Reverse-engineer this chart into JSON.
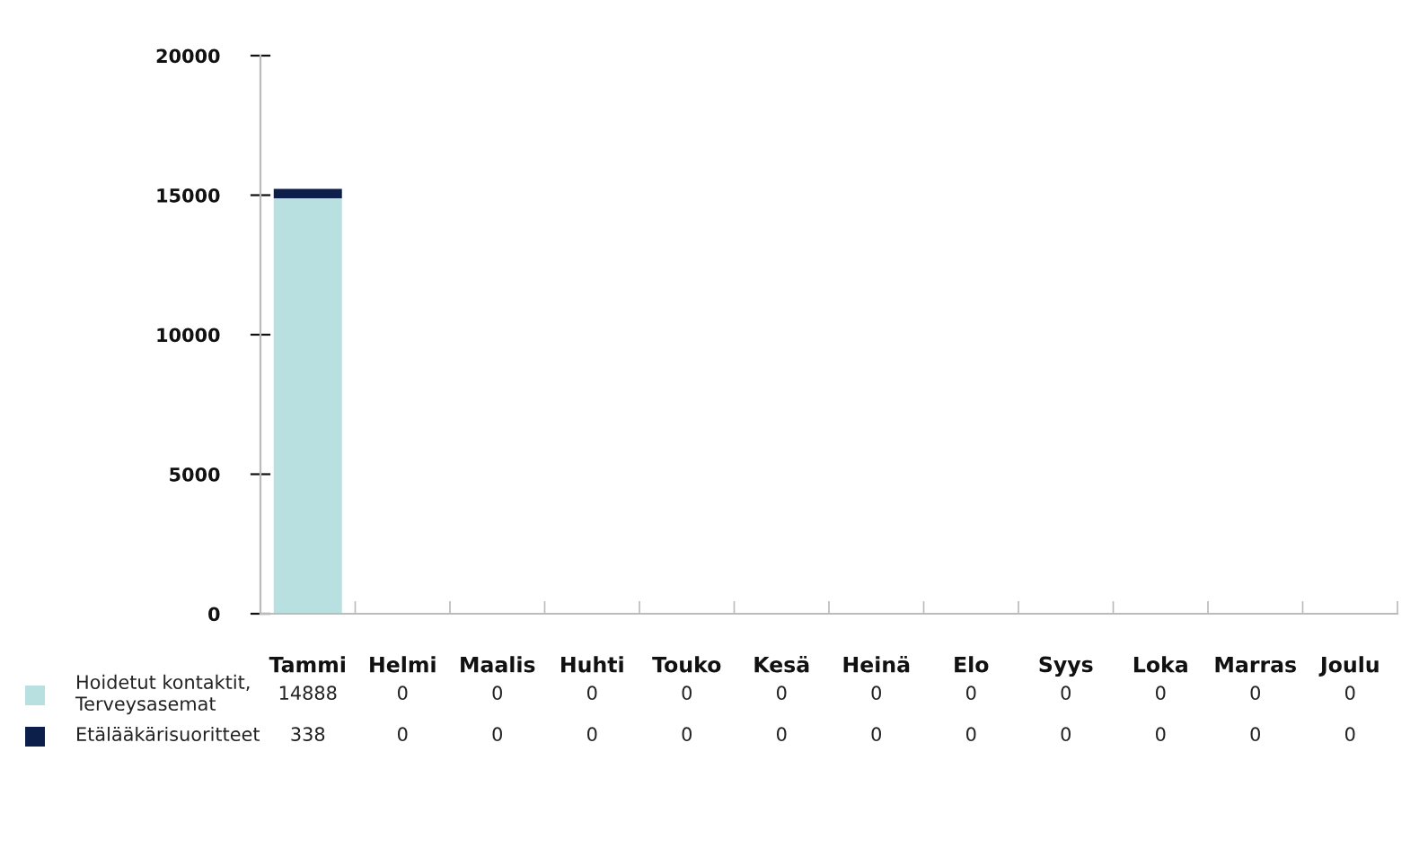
{
  "chart_data": {
    "type": "bar",
    "stacked": true,
    "categories": [
      "Tammi",
      "Helmi",
      "Maalis",
      "Huhti",
      "Touko",
      "Kesä",
      "Heinä",
      "Elo",
      "Syys",
      "Loka",
      "Marras",
      "Joulu"
    ],
    "series": [
      {
        "name": "Hoidetut kontaktit,\nTerveysasemat",
        "color": "#b8e0e1",
        "values": [
          14888,
          0,
          0,
          0,
          0,
          0,
          0,
          0,
          0,
          0,
          0,
          0
        ]
      },
      {
        "name": "Etälääkärisuoritteet",
        "color": "#0c1f4b",
        "values": [
          338,
          0,
          0,
          0,
          0,
          0,
          0,
          0,
          0,
          0,
          0,
          0
        ]
      }
    ],
    "ylim": [
      0,
      20000
    ],
    "yticks": [
      0,
      5000,
      10000,
      15000,
      20000
    ],
    "data_labels": true,
    "legend": "bottom left"
  }
}
